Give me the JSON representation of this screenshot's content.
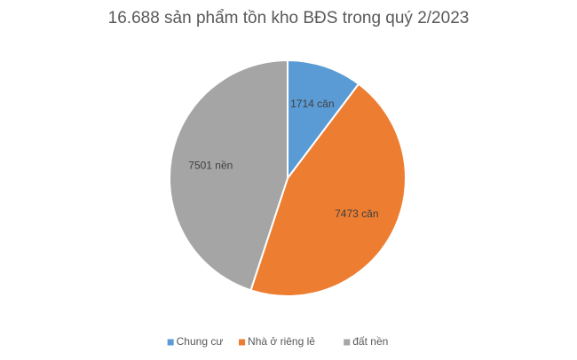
{
  "chart_data": {
    "type": "pie",
    "title": "16.688 sản phẩm tồn kho BĐS trong quý 2/2023",
    "categories": [
      "Chung cư",
      "Nhà ở riêng lẻ",
      "đất nền"
    ],
    "values": [
      1714,
      7473,
      7501
    ],
    "value_labels": [
      "1714 căn",
      "7473 căn",
      "7501 nền"
    ],
    "colors": [
      "#5b9bd5",
      "#ed7d31",
      "#a5a5a5"
    ],
    "legend": "bottom"
  }
}
